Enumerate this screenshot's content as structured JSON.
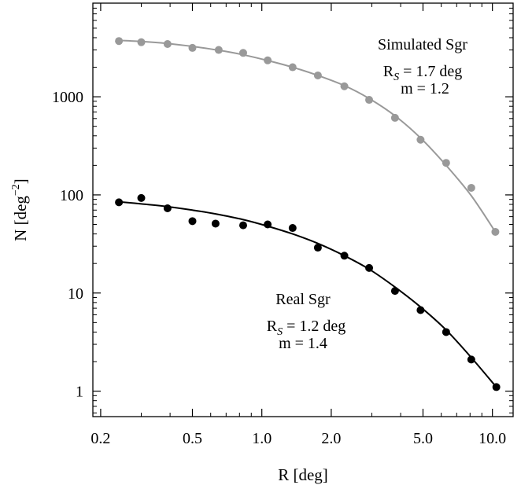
{
  "chart_data": {
    "type": "scatter",
    "xlabel": "R [deg]",
    "ylabel_base": "N [deg",
    "ylabel_exp": "−2",
    "ylabel_close": "]",
    "x_scale": "log",
    "y_scale": "log",
    "xlim": [
      0.185,
      12.3
    ],
    "ylim": [
      0.55,
      9000
    ],
    "grid": false,
    "x_ticks": [
      {
        "value": 0.2,
        "label": "0.2"
      },
      {
        "value": 0.5,
        "label": "0.5"
      },
      {
        "value": 1.0,
        "label": "1.0"
      },
      {
        "value": 2.0,
        "label": "2.0"
      },
      {
        "value": 5.0,
        "label": "5.0"
      },
      {
        "value": 10.0,
        "label": "10.0"
      }
    ],
    "y_ticks": [
      {
        "value": 1,
        "label": "1"
      },
      {
        "value": 10,
        "label": "10"
      },
      {
        "value": 100,
        "label": "100"
      },
      {
        "value": 1000,
        "label": "1000"
      }
    ],
    "series": [
      {
        "color": "#999999",
        "x": [
          0.24,
          0.3,
          0.39,
          0.5,
          0.65,
          0.83,
          1.06,
          1.36,
          1.75,
          2.28,
          2.92,
          3.78,
          4.88,
          6.3,
          8.1,
          10.3
        ],
        "y": [
          3700,
          3600,
          3450,
          3150,
          3000,
          2800,
          2350,
          2000,
          1650,
          1280,
          930,
          610,
          365,
          212,
          118,
          42
        ],
        "fit_x": [
          0.24,
          0.3,
          0.39,
          0.5,
          0.65,
          0.83,
          1.06,
          1.36,
          1.75,
          2.28,
          2.92,
          3.78,
          4.88,
          6.3,
          8.1,
          10.3
        ],
        "fit_y": [
          3750,
          3660,
          3490,
          3260,
          2980,
          2680,
          2340,
          2000,
          1650,
          1300,
          960,
          640,
          380,
          200,
          98,
          42
        ]
      },
      {
        "color": "#000000",
        "x": [
          0.24,
          0.3,
          0.39,
          0.5,
          0.63,
          0.83,
          1.06,
          1.36,
          1.75,
          2.28,
          2.92,
          3.78,
          4.88,
          6.3,
          8.1,
          10.4
        ],
        "y": [
          84,
          93,
          73,
          54,
          51,
          49,
          50,
          46,
          29,
          24,
          18,
          10.5,
          6.7,
          4.0,
          2.1,
          1.1
        ],
        "fit_x": [
          0.24,
          0.3,
          0.39,
          0.5,
          0.63,
          0.83,
          1.06,
          1.36,
          1.75,
          2.28,
          2.92,
          3.78,
          4.88,
          6.3,
          8.1,
          10.4
        ],
        "fit_y": [
          85,
          81,
          76,
          70,
          64,
          56,
          48,
          40,
          32,
          24,
          17.5,
          11.5,
          7.2,
          4.2,
          2.2,
          1.1
        ]
      }
    ],
    "annotations": [
      {
        "id": "sim-title",
        "text": "Simulated Sgr"
      },
      {
        "id": "sim-rs",
        "text_R": "R",
        "text_sub": "S",
        "text_rest": " = 1.7 deg"
      },
      {
        "id": "sim-m",
        "text": "m = 1.2"
      },
      {
        "id": "real-title",
        "text": "Real Sgr"
      },
      {
        "id": "real-rs",
        "text_R": "R",
        "text_sub": "S",
        "text_rest": " = 1.2 deg"
      },
      {
        "id": "real-m",
        "text": "m = 1.4"
      }
    ]
  }
}
